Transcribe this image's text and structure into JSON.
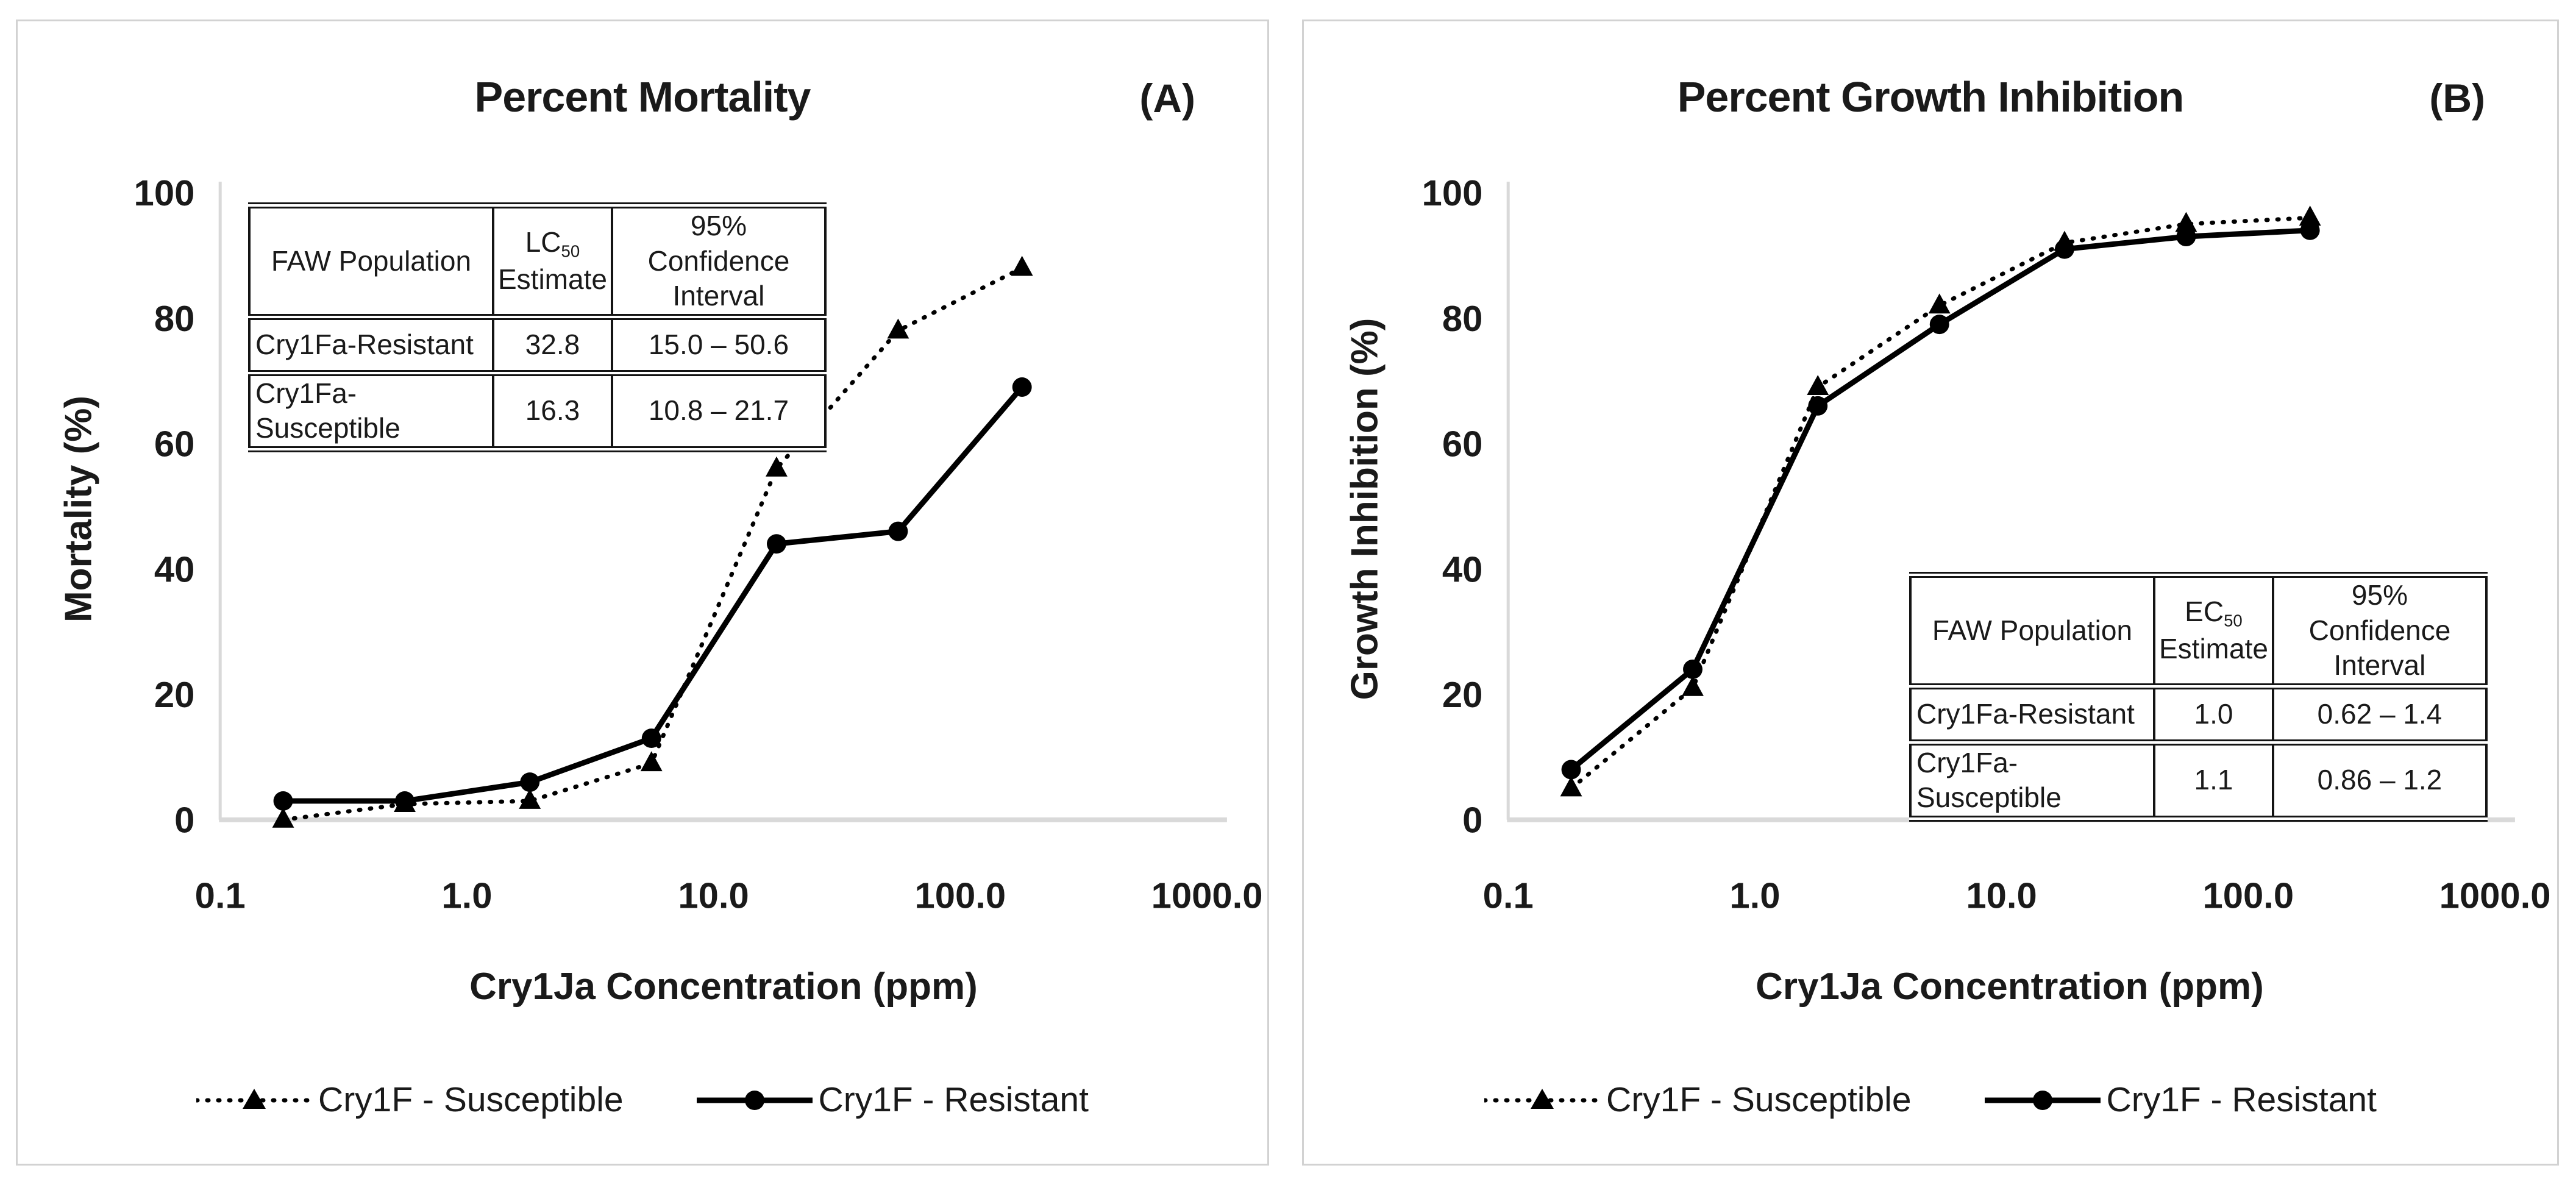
{
  "figure": {
    "background": "#ffffff",
    "panel_border_color": "#d2d2d2",
    "axis_color": "#d9d9d9",
    "series_color": "#000000",
    "text_color": "#1a1a1a"
  },
  "legend": {
    "items": [
      {
        "label": "Cry1F - Susceptible",
        "marker": "triangle",
        "line": "dotted"
      },
      {
        "label": "Cry1F - Resistant",
        "marker": "circle",
        "line": "solid"
      }
    ]
  },
  "chart_data": [
    {
      "type": "line",
      "panel_label": "(A)",
      "title": "Percent Mortality",
      "xlabel": "Cry1Ja Concentration (ppm)",
      "ylabel": "Mortality (%)",
      "x_scale": "log",
      "xlim": [
        0.1,
        1000
      ],
      "ylim": [
        0,
        100
      ],
      "grid": false,
      "legend_position": "bottom",
      "x_tick_labels": [
        "0.1",
        "1.0",
        "10.0",
        "100.0",
        "1000.0"
      ],
      "x_tick_values": [
        0.1,
        1,
        10,
        100,
        1000
      ],
      "y_tick_labels": [
        "0",
        "20",
        "40",
        "60",
        "80",
        "100"
      ],
      "y_tick_values": [
        0,
        20,
        40,
        60,
        80,
        100
      ],
      "x": [
        0.18,
        0.56,
        1.8,
        5.6,
        18,
        56,
        178
      ],
      "series": [
        {
          "name": "Cry1F - Susceptible",
          "line": "dotted",
          "marker": "triangle",
          "values": [
            0,
            2.5,
            3,
            9,
            56,
            78,
            88
          ]
        },
        {
          "name": "Cry1F - Resistant",
          "line": "solid",
          "marker": "circle",
          "values": [
            3,
            3,
            6,
            13,
            44,
            46,
            69
          ]
        }
      ],
      "inset_table": {
        "position": "top-left",
        "headers": [
          {
            "line1": "FAW Population"
          },
          {
            "line1": "LC",
            "sub": "50",
            "line2": "Estimate"
          },
          {
            "line1": "95% Confidence",
            "line2": "Interval"
          }
        ],
        "rows": [
          [
            "Cry1Fa-Resistant",
            "32.8",
            "15.0 – 50.6"
          ],
          [
            "Cry1Fa-Susceptible",
            "16.3",
            "10.8 – 21.7"
          ]
        ]
      }
    },
    {
      "type": "line",
      "panel_label": "(B)",
      "title": "Percent Growth Inhibition",
      "xlabel": "Cry1Ja Concentration (ppm)",
      "ylabel": "Growth Inhibition (%)",
      "x_scale": "log",
      "xlim": [
        0.1,
        1000
      ],
      "ylim": [
        0,
        100
      ],
      "grid": false,
      "legend_position": "bottom",
      "x_tick_labels": [
        "0.1",
        "1.0",
        "10.0",
        "100.0",
        "1000.0"
      ],
      "x_tick_values": [
        0.1,
        1,
        10,
        100,
        1000
      ],
      "y_tick_labels": [
        "0",
        "20",
        "40",
        "60",
        "80",
        "100"
      ],
      "y_tick_values": [
        0,
        20,
        40,
        60,
        80,
        100
      ],
      "x": [
        0.18,
        0.56,
        1.8,
        5.6,
        18,
        56,
        178
      ],
      "series": [
        {
          "name": "Cry1F - Susceptible",
          "line": "dotted",
          "marker": "triangle",
          "values": [
            5,
            21,
            69,
            82,
            92,
            95,
            96
          ]
        },
        {
          "name": "Cry1F - Resistant",
          "line": "solid",
          "marker": "circle",
          "values": [
            8,
            24,
            66,
            79,
            91,
            93,
            94
          ]
        }
      ],
      "inset_table": {
        "position": "bottom-right",
        "headers": [
          {
            "line1": "FAW Population"
          },
          {
            "line1": "EC",
            "sub": "50",
            "line2": "Estimate"
          },
          {
            "line1": "95% Confidence",
            "line2": "Interval"
          }
        ],
        "rows": [
          [
            "Cry1Fa-Resistant",
            "1.0",
            "0.62 – 1.4"
          ],
          [
            "Cry1Fa-Susceptible",
            "1.1",
            "0.86 – 1.2"
          ]
        ]
      }
    }
  ]
}
